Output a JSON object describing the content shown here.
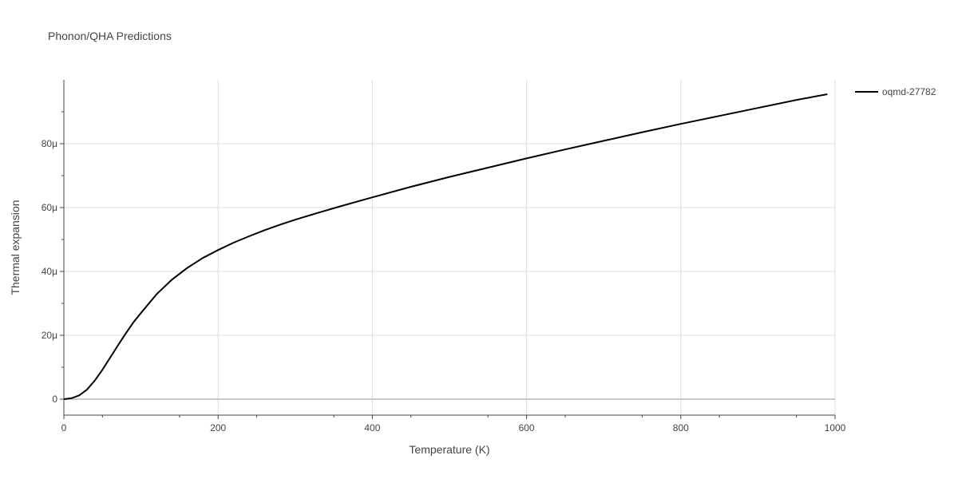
{
  "chart_data": {
    "type": "line",
    "title": "Phonon/QHA Predictions",
    "xlabel": "Temperature (K)",
    "ylabel": "Thermal expansion",
    "xlim": [
      0,
      1000
    ],
    "ylim": [
      -5e-06,
      0.0001
    ],
    "x_ticks": [
      0,
      200,
      400,
      600,
      800,
      1000
    ],
    "x_tick_labels": [
      "0",
      "200",
      "400",
      "600",
      "800",
      "1000"
    ],
    "y_ticks": [
      0,
      2e-05,
      4e-05,
      6e-05,
      8e-05
    ],
    "y_tick_labels": [
      "0",
      "20μ",
      "40μ",
      "60μ",
      "80μ"
    ],
    "grid": true,
    "legend_position": "top-right",
    "series": [
      {
        "name": "oqmd-27782",
        "color": "#000000",
        "x": [
          0,
          10,
          20,
          30,
          40,
          50,
          60,
          70,
          80,
          90,
          100,
          120,
          140,
          160,
          180,
          200,
          220,
          240,
          260,
          280,
          300,
          330,
          360,
          400,
          450,
          500,
          550,
          600,
          650,
          700,
          750,
          800,
          850,
          900,
          950,
          990
        ],
        "y": [
          0,
          3e-07,
          1.2e-06,
          3e-06,
          5.8e-06,
          9.2e-06,
          1.3e-05,
          1.68e-05,
          2.05e-05,
          2.4e-05,
          2.7e-05,
          3.28e-05,
          3.74e-05,
          4.11e-05,
          4.42e-05,
          4.67e-05,
          4.9e-05,
          5.1e-05,
          5.29e-05,
          5.46e-05,
          5.62e-05,
          5.84e-05,
          6.05e-05,
          6.32e-05,
          6.65e-05,
          6.96e-05,
          7.25e-05,
          7.54e-05,
          7.82e-05,
          8.09e-05,
          8.36e-05,
          8.62e-05,
          8.87e-05,
          9.12e-05,
          9.37e-05,
          9.55e-05
        ]
      }
    ]
  }
}
